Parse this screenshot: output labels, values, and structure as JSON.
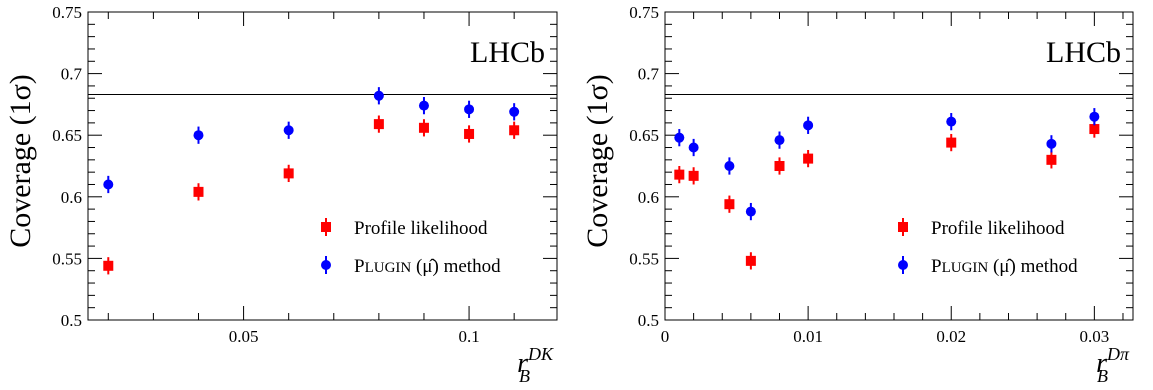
{
  "colors": {
    "profile": "#ff0000",
    "plugin": "#0000ff",
    "axis": "#000000"
  },
  "chart_data": [
    {
      "type": "scatter",
      "ylabel": "Coverage (1σ)",
      "xlabel_main": "r",
      "xlabel_sub": "B",
      "xlabel_sup": "DK",
      "annotation": "LHCb",
      "xlim": [
        0.0155,
        0.1195
      ],
      "ylim": [
        0.5,
        0.75
      ],
      "xticks": [
        0.05,
        0.1
      ],
      "xtick_labels": [
        "0.05",
        "0.1"
      ],
      "yticks": [
        0.5,
        0.55,
        0.6,
        0.65,
        0.7,
        0.75
      ],
      "ytick_labels": [
        "0.5",
        "0.55",
        "0.6",
        "0.65",
        "0.7",
        "0.75"
      ],
      "reference_line": 0.683,
      "series": [
        {
          "name": "Profile likelihood",
          "marker": "square",
          "color": "#ff0000",
          "x": [
            0.02,
            0.04,
            0.06,
            0.08,
            0.09,
            0.1,
            0.11
          ],
          "y": [
            0.544,
            0.604,
            0.619,
            0.659,
            0.656,
            0.651,
            0.654
          ],
          "err": [
            0.007,
            0.007,
            0.007,
            0.007,
            0.007,
            0.007,
            0.007
          ]
        },
        {
          "name_prefix": "P",
          "name_sc": "LUGIN",
          "name_suffix": " (μ̂) method",
          "marker": "circle",
          "color": "#0000ff",
          "x": [
            0.02,
            0.04,
            0.06,
            0.08,
            0.09,
            0.1,
            0.11
          ],
          "y": [
            0.61,
            0.65,
            0.654,
            0.682,
            0.674,
            0.671,
            0.669
          ],
          "err": [
            0.007,
            0.007,
            0.007,
            0.007,
            0.007,
            0.007,
            0.007
          ]
        }
      ]
    },
    {
      "type": "scatter",
      "ylabel": "Coverage (1σ)",
      "xlabel_main": "r",
      "xlabel_sub": "B",
      "xlabel_sup": "Dπ",
      "annotation": "LHCb",
      "xlim": [
        0.0,
        0.0327
      ],
      "ylim": [
        0.5,
        0.75
      ],
      "xticks": [
        0,
        0.01,
        0.02,
        0.03
      ],
      "xtick_labels": [
        "0",
        "0.01",
        "0.02",
        "0.03"
      ],
      "yticks": [
        0.5,
        0.55,
        0.6,
        0.65,
        0.7,
        0.75
      ],
      "ytick_labels": [
        "0.5",
        "0.55",
        "0.6",
        "0.65",
        "0.7",
        "0.75"
      ],
      "reference_line": 0.683,
      "series": [
        {
          "name": "Profile likelihood",
          "marker": "square",
          "color": "#ff0000",
          "x": [
            0.001,
            0.002,
            0.0045,
            0.006,
            0.008,
            0.01,
            0.02,
            0.027,
            0.03
          ],
          "y": [
            0.618,
            0.617,
            0.594,
            0.548,
            0.625,
            0.631,
            0.644,
            0.63,
            0.655
          ],
          "err": [
            0.007,
            0.007,
            0.007,
            0.007,
            0.007,
            0.007,
            0.007,
            0.007,
            0.007
          ]
        },
        {
          "name_prefix": "P",
          "name_sc": "LUGIN",
          "name_suffix": " (μ̂) method",
          "marker": "circle",
          "color": "#0000ff",
          "x": [
            0.001,
            0.002,
            0.0045,
            0.006,
            0.008,
            0.01,
            0.02,
            0.027,
            0.03
          ],
          "y": [
            0.648,
            0.64,
            0.625,
            0.588,
            0.646,
            0.658,
            0.661,
            0.643,
            0.665
          ],
          "err": [
            0.007,
            0.007,
            0.007,
            0.007,
            0.007,
            0.007,
            0.007,
            0.007,
            0.007
          ]
        }
      ]
    }
  ]
}
